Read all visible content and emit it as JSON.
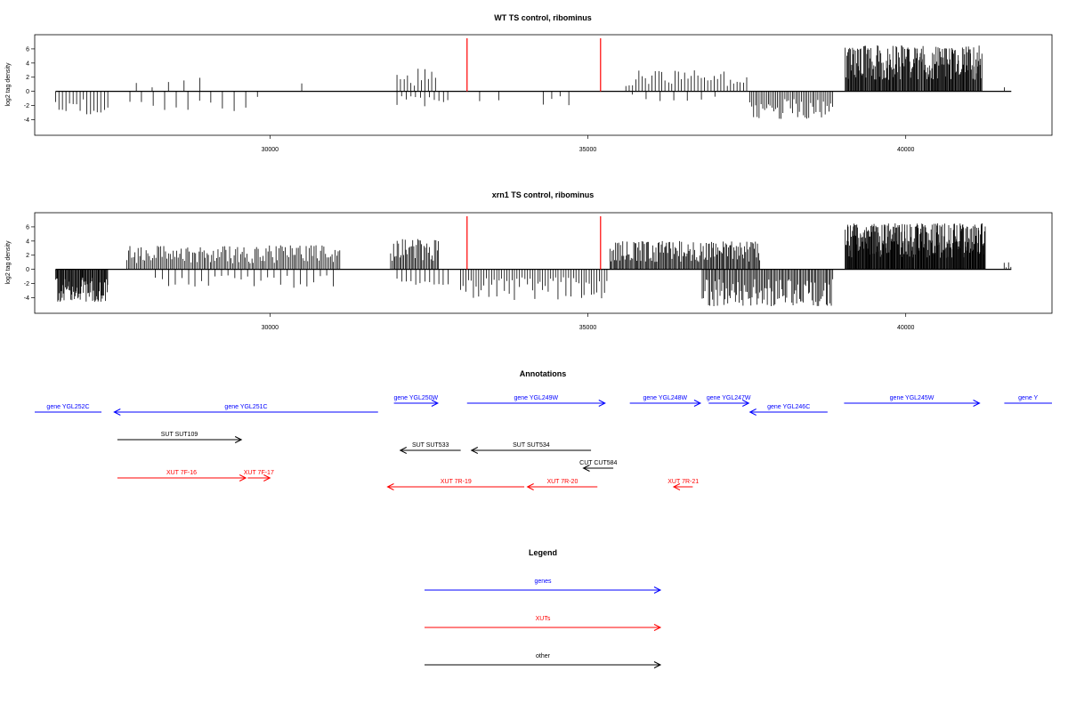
{
  "chart_data": [
    {
      "type": "bar",
      "title": "WT TS control, ribominus",
      "ylabel": "log2 tag density",
      "xlim": [
        26300,
        42300
      ],
      "ylim": [
        -6.2,
        8.0
      ],
      "xticks": [
        30000,
        35000,
        40000
      ],
      "yticks": [
        6,
        4,
        2,
        0,
        -2,
        -4
      ],
      "markers": [
        33100,
        35200
      ],
      "baseline": [
        26630,
        41660
      ],
      "segments": [
        {
          "range": [
            26630,
            27450
          ],
          "sign": -1,
          "density": 0.02,
          "amp": 3.3,
          "seed": 11
        },
        {
          "range": [
            27800,
            29800
          ],
          "sign": -1,
          "density": 0.006,
          "amp": 2.8,
          "seed": 12
        },
        {
          "range": [
            27900,
            28900
          ],
          "sign": 1,
          "density": 0.005,
          "amp": 2.0,
          "seed": 13
        },
        {
          "range": [
            30500,
            30500
          ],
          "sign": 1,
          "density": 1,
          "amp": 2.6,
          "seed": 14
        },
        {
          "range": [
            32000,
            32600
          ],
          "sign": 1,
          "density": 0.02,
          "amp": 3.2,
          "seed": 15
        },
        {
          "range": [
            32000,
            32800
          ],
          "sign": -1,
          "density": 0.015,
          "amp": 2.4,
          "seed": 16
        },
        {
          "range": [
            33300,
            33600
          ],
          "sign": -1,
          "density": 0.008,
          "amp": 1.6,
          "seed": 17
        },
        {
          "range": [
            34300,
            34700
          ],
          "sign": -1,
          "density": 0.01,
          "amp": 2.0,
          "seed": 18
        },
        {
          "range": [
            35600,
            37500
          ],
          "sign": 1,
          "density": 0.02,
          "amp": 3.0,
          "seed": 19
        },
        {
          "range": [
            35700,
            37000
          ],
          "sign": -1,
          "density": 0.005,
          "amp": 1.4,
          "seed": 20
        },
        {
          "range": [
            37550,
            38850
          ],
          "sign": -1,
          "density": 0.035,
          "amp": 4.0,
          "seed": 21
        },
        {
          "range": [
            39050,
            41200
          ],
          "sign": 1,
          "density": 0.09,
          "amp": 6.5,
          "seed": 22
        },
        {
          "range": [
            41550,
            41550
          ],
          "sign": 1,
          "density": 1,
          "amp": 1.3,
          "seed": 23
        }
      ]
    },
    {
      "type": "bar",
      "title": "xrn1 TS control, ribominus",
      "ylabel": "log2 tag density",
      "xlim": [
        26300,
        42300
      ],
      "ylim": [
        -6.2,
        8.0
      ],
      "xticks": [
        30000,
        35000,
        40000
      ],
      "yticks": [
        6,
        4,
        2,
        0,
        -2,
        -4
      ],
      "markers": [
        33100,
        35200
      ],
      "baseline": [
        26630,
        41660
      ],
      "segments": [
        {
          "range": [
            26630,
            27450
          ],
          "sign": -1,
          "density": 0.09,
          "amp": 4.6,
          "seed": 31
        },
        {
          "range": [
            27750,
            31100
          ],
          "sign": 1,
          "density": 0.04,
          "amp": 3.4,
          "seed": 32
        },
        {
          "range": [
            28200,
            31000
          ],
          "sign": -1,
          "density": 0.01,
          "amp": 2.6,
          "seed": 33
        },
        {
          "range": [
            31900,
            32650
          ],
          "sign": 1,
          "density": 0.05,
          "amp": 4.3,
          "seed": 34
        },
        {
          "range": [
            32000,
            32800
          ],
          "sign": -1,
          "density": 0.015,
          "amp": 2.2,
          "seed": 35
        },
        {
          "range": [
            33000,
            35300
          ],
          "sign": -1,
          "density": 0.025,
          "amp": 4.4,
          "seed": 36
        },
        {
          "range": [
            35350,
            37700
          ],
          "sign": 1,
          "density": 0.06,
          "amp": 4.0,
          "seed": 37
        },
        {
          "range": [
            36800,
            38850
          ],
          "sign": -1,
          "density": 0.05,
          "amp": 5.2,
          "seed": 38
        },
        {
          "range": [
            39050,
            41250
          ],
          "sign": 1,
          "density": 0.12,
          "amp": 6.5,
          "seed": 39
        },
        {
          "range": [
            41550,
            41650
          ],
          "sign": 1,
          "density": 0.04,
          "amp": 1.0,
          "seed": 40
        }
      ]
    }
  ],
  "annotations": {
    "title": "Annotations",
    "features": [
      {
        "label": "gene YGL252C",
        "type": "genes",
        "start": 26300,
        "end": 27350,
        "strand": "-",
        "row": 0,
        "arrow": false
      },
      {
        "label": "gene YGL251C",
        "type": "genes",
        "start": 27550,
        "end": 31700,
        "strand": "-",
        "row": 0,
        "arrow": true
      },
      {
        "label": "gene YGL250W",
        "type": "genes",
        "start": 31950,
        "end": 32640,
        "strand": "+",
        "row": 1,
        "arrow": true
      },
      {
        "label": "gene YGL249W",
        "type": "genes",
        "start": 33100,
        "end": 35270,
        "strand": "+",
        "row": 1,
        "arrow": true
      },
      {
        "label": "gene YGL248W",
        "type": "genes",
        "start": 35660,
        "end": 36770,
        "strand": "+",
        "row": 1,
        "arrow": true
      },
      {
        "label": "gene YGL247W",
        "type": "genes",
        "start": 36900,
        "end": 37530,
        "strand": "+",
        "row": 1,
        "arrow": true
      },
      {
        "label": "gene YGL246C",
        "type": "genes",
        "start": 37550,
        "end": 38770,
        "strand": "-",
        "row": 0,
        "arrow": true
      },
      {
        "label": "gene YGL245W",
        "type": "genes",
        "start": 39030,
        "end": 41160,
        "strand": "+",
        "row": 1,
        "arrow": true
      },
      {
        "label": "gene Y",
        "type": "genes",
        "start": 41550,
        "end": 42300,
        "strand": "+",
        "row": 1,
        "arrow": false
      },
      {
        "label": "SUT SUT109",
        "type": "other",
        "start": 27600,
        "end": 29550,
        "strand": "+",
        "row": 2,
        "arrow": true
      },
      {
        "label": "SUT SUT533",
        "type": "other",
        "start": 32050,
        "end": 33000,
        "strand": "-",
        "row": 3,
        "arrow": true
      },
      {
        "label": "SUT SUT534",
        "type": "other",
        "start": 33170,
        "end": 35050,
        "strand": "-",
        "row": 3,
        "arrow": true
      },
      {
        "label": "CUT CUT584",
        "type": "other",
        "start": 34930,
        "end": 35400,
        "strand": "-",
        "row": 4,
        "arrow": true
      },
      {
        "label": "XUT 7F-16",
        "type": "XUTs",
        "start": 27600,
        "end": 29620,
        "strand": "+",
        "row": 5,
        "arrow": true
      },
      {
        "label": "XUT 7F-17",
        "type": "XUTs",
        "start": 29650,
        "end": 30000,
        "strand": "+",
        "row": 5,
        "arrow": true
      },
      {
        "label": "XUT 7R-19",
        "type": "XUTs",
        "start": 31850,
        "end": 34000,
        "strand": "-",
        "row": 6,
        "arrow": true
      },
      {
        "label": "XUT 7R-20",
        "type": "XUTs",
        "start": 34050,
        "end": 35150,
        "strand": "-",
        "row": 6,
        "arrow": true
      },
      {
        "label": "XUT 7R-21",
        "type": "XUTs",
        "start": 36350,
        "end": 36650,
        "strand": "-",
        "row": 6,
        "arrow": true
      }
    ]
  },
  "legend": {
    "title": "Legend",
    "items": [
      {
        "label": "genes",
        "type": "genes"
      },
      {
        "label": "XUTs",
        "type": "XUTs"
      },
      {
        "label": "other",
        "type": "other"
      }
    ]
  },
  "colors": {
    "genes": "#0000ff",
    "XUTs": "#ff0000",
    "other": "#000000",
    "marker": "#ff0000",
    "axis": "#000000"
  }
}
